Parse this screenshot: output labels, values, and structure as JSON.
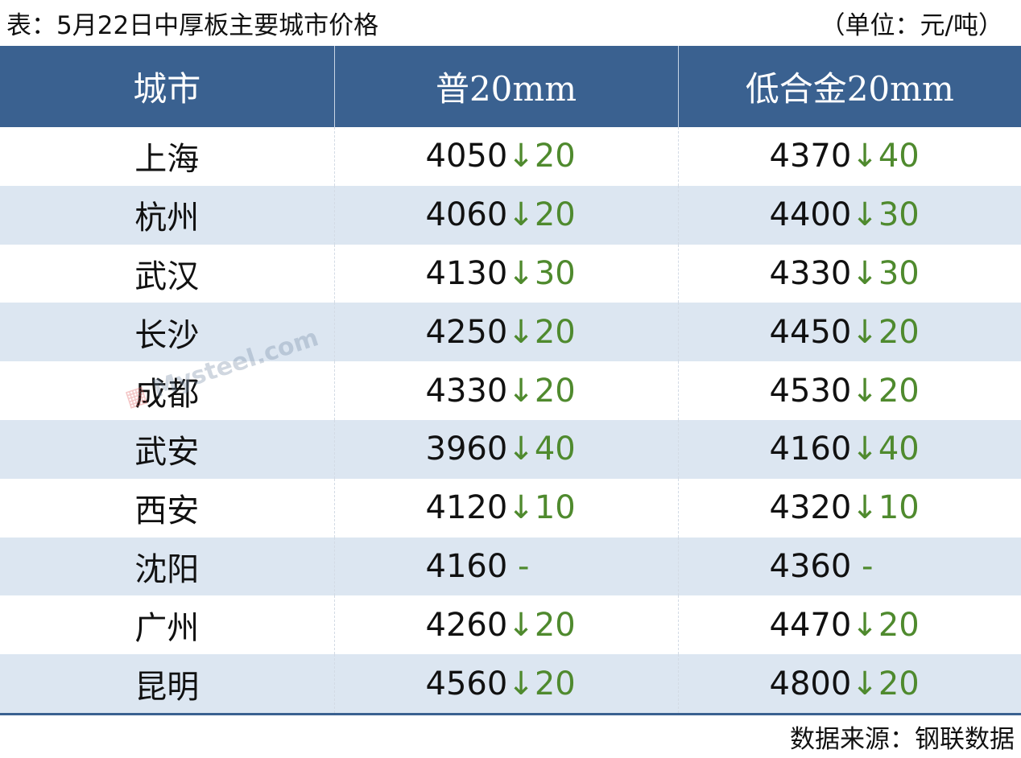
{
  "title": "表：5月22日中厚板主要城市价格",
  "unit": "（单位：元/吨）",
  "columns": [
    "城市",
    "普20mm",
    "低合金20mm"
  ],
  "rows": [
    {
      "city": "上海",
      "p": "4050",
      "pc": "↓20",
      "l": "4370",
      "lc": "↓40"
    },
    {
      "city": "杭州",
      "p": "4060",
      "pc": "↓20",
      "l": "4400",
      "lc": "↓30"
    },
    {
      "city": "武汉",
      "p": "4130",
      "pc": "↓30",
      "l": "4330",
      "lc": "↓30"
    },
    {
      "city": "长沙",
      "p": "4250",
      "pc": "↓20",
      "l": "4450",
      "lc": "↓20"
    },
    {
      "city": "成都",
      "p": "4330",
      "pc": "↓20",
      "l": "4530",
      "lc": "↓20"
    },
    {
      "city": "武安",
      "p": "3960",
      "pc": "↓40",
      "l": "4160",
      "lc": "↓40"
    },
    {
      "city": "西安",
      "p": "4120",
      "pc": "↓10",
      "l": "4320",
      "lc": "↓10"
    },
    {
      "city": "沈阳",
      "p": "4160",
      "pc": " -",
      "l": "4360",
      "lc": " -"
    },
    {
      "city": "广州",
      "p": "4260",
      "pc": "↓20",
      "l": "4470",
      "lc": "↓20"
    },
    {
      "city": "昆明",
      "p": "4560",
      "pc": "↓20",
      "l": "4800",
      "lc": "↓20"
    }
  ],
  "source": "数据来源：钢联数据",
  "watermark": {
    "cn": "我的钢铁",
    "en": "Mysteel.com"
  },
  "colors": {
    "header": "#3a6190",
    "stripe": "#dce6f1",
    "down": "#4f8a2e"
  }
}
